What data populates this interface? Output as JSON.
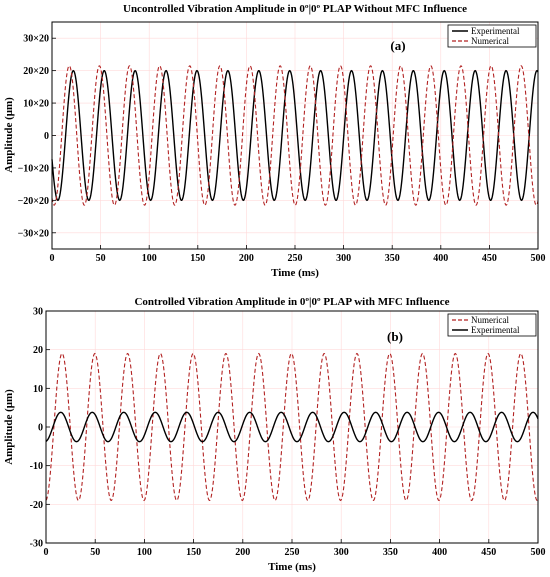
{
  "chart_data": [
    {
      "type": "line",
      "title": "Uncontrolled Vibration Amplitude in 0º|0º PLAP  Without MFC Influence",
      "panel_label": "(a)",
      "xlabel": "Time (ms)",
      "ylabel": "Amplitude (μm)",
      "xlim": [
        0,
        500
      ],
      "ylim": [
        -35,
        35
      ],
      "xticks": [
        0,
        50,
        100,
        150,
        200,
        250,
        300,
        350,
        400,
        450,
        500
      ],
      "yticks": [
        -30,
        -20,
        -10,
        0,
        10,
        20,
        30
      ],
      "ytick_labels": [
        "−30×20",
        "−20×20",
        "−10×20",
        "0",
        "10×20",
        "20×20",
        "30×20"
      ],
      "grid": true,
      "legend": "top-right",
      "series": [
        {
          "name": "Experimental",
          "style": "solid",
          "color": "#000000",
          "amplitude": 20,
          "period_ms": 31.8,
          "phase_ms": 14,
          "x_range": [
            0,
            500
          ]
        },
        {
          "name": "Numerical",
          "style": "dashed",
          "color": "#b22222",
          "amplitude": 21.5,
          "period_ms": 31.0,
          "phase_ms": 10,
          "x_range": [
            0,
            500
          ]
        }
      ]
    },
    {
      "type": "line",
      "title": "Controlled Vibration Amplitude in 0º|0º PLAP  with MFC Influence",
      "panel_label": "(b)",
      "xlabel": "Time (ms)",
      "ylabel": "Amplitude (μm)",
      "xlim": [
        0,
        500
      ],
      "ylim": [
        -30,
        30
      ],
      "xticks": [
        0,
        50,
        100,
        150,
        200,
        250,
        300,
        350,
        400,
        450,
        500
      ],
      "yticks": [
        -30,
        -20,
        -10,
        0,
        10,
        20,
        30
      ],
      "grid": true,
      "legend": "top-right",
      "series": [
        {
          "name": "Numerical",
          "style": "dashed",
          "color": "#b22222",
          "amplitude": 19,
          "period_ms": 33.3,
          "phase_ms": 8,
          "x_range": [
            0,
            500
          ]
        },
        {
          "name": "Experimental",
          "style": "solid",
          "color": "#000000",
          "amplitude": 3.8,
          "period_ms": 32.0,
          "phase_ms": 7,
          "x_range": [
            0,
            500
          ]
        }
      ]
    }
  ]
}
